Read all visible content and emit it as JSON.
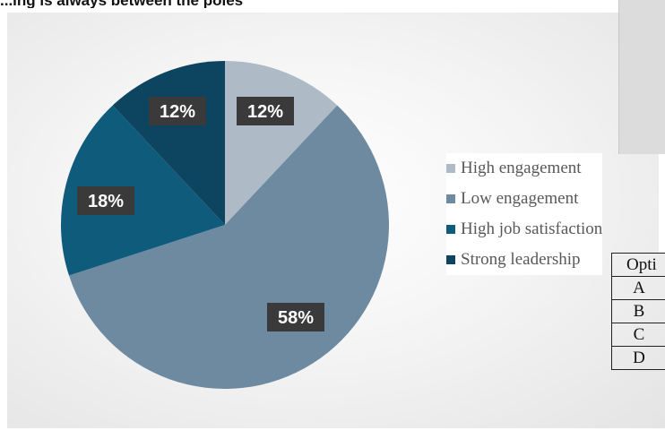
{
  "title_fragment": "...ing is always between the poles",
  "chart_data": {
    "type": "pie",
    "categories": [
      "High engagement",
      "Low engagement",
      "High job satisfaction",
      "Strong leadership"
    ],
    "values": [
      12,
      58,
      18,
      12
    ],
    "labels": [
      "12%",
      "58%",
      "18%",
      "12%"
    ],
    "colors": [
      "#aebbc6",
      "#6d8aa0",
      "#0f5b7c",
      "#0d4560"
    ],
    "legend_position": "right"
  },
  "options_table": {
    "header": "Opti",
    "rows": [
      "A",
      "B",
      "C",
      "D"
    ]
  }
}
